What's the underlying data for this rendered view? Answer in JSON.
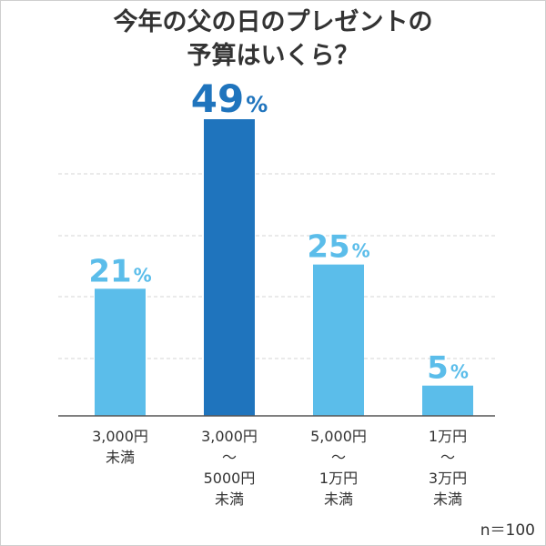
{
  "chart_data": {
    "type": "bar",
    "title_lines": [
      "今年の父の日のプレゼントの",
      "予算はいくら？"
    ],
    "categories": [
      [
        "3,000円",
        "未満"
      ],
      [
        "3,000円",
        "～",
        "5000円",
        "未満"
      ],
      [
        "5,000円",
        "～",
        "1万円",
        "未満"
      ],
      [
        "1万円",
        "～",
        "3万円",
        "未満"
      ]
    ],
    "values": [
      21,
      49,
      25,
      5
    ],
    "value_labels": [
      "21",
      "49",
      "25",
      "5"
    ],
    "unit": "%",
    "highlight_index": 1,
    "ylim": [
      0,
      50
    ],
    "gridlines": true,
    "note": "n＝100"
  },
  "colors": {
    "bar": "#5bbdea",
    "bar_highlight": "#1f74bd",
    "label": "#5bbdea",
    "label_highlight": "#1f74bd",
    "text": "#333333",
    "grid": "#d6d6d6",
    "axis": "#555555"
  }
}
